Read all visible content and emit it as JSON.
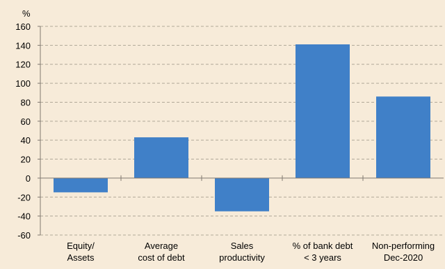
{
  "chart_data": {
    "type": "bar",
    "unit_label": "%",
    "categories": [
      [
        "Equity/",
        "Assets"
      ],
      [
        "Average",
        "cost of debt"
      ],
      [
        "Sales",
        "productivity"
      ],
      [
        "% of bank debt",
        "< 3 years"
      ],
      [
        "Non-performing",
        "Dec-2020"
      ]
    ],
    "values": [
      -15,
      43,
      -35,
      141,
      86
    ],
    "ylim": [
      -60,
      160
    ],
    "yticks": [
      -60,
      -40,
      -20,
      0,
      20,
      40,
      60,
      80,
      100,
      120,
      140,
      160
    ],
    "grid": true,
    "colors": {
      "bar": "#4080c8",
      "grid": "#b0a898",
      "axis": "#807870",
      "background": "#f7ebd9"
    }
  }
}
